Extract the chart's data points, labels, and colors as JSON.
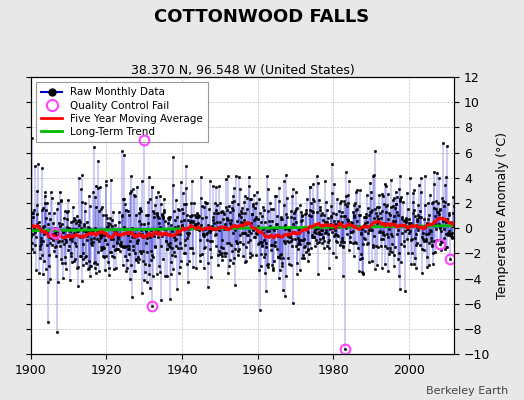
{
  "title": "COTTONWOOD FALLS",
  "subtitle": "38.370 N, 96.548 W (United States)",
  "credit": "Berkeley Earth",
  "year_start": 1900,
  "year_end": 2011,
  "ylim": [
    -10,
    12
  ],
  "yticks": [
    -10,
    -8,
    -6,
    -4,
    -2,
    0,
    2,
    4,
    6,
    8,
    10,
    12
  ],
  "xticks": [
    1900,
    1920,
    1940,
    1960,
    1980,
    2000
  ],
  "ylabel": "Temperature Anomaly (°C)",
  "bg_color": "#e8e8e8",
  "plot_bg": "#ffffff",
  "raw_color": "#0000cc",
  "marker_color": "#000000",
  "qc_color": "#ff44ff",
  "moving_avg_color": "#ff0000",
  "trend_color": "#00bb00",
  "seed": 137,
  "n_months": 1344
}
